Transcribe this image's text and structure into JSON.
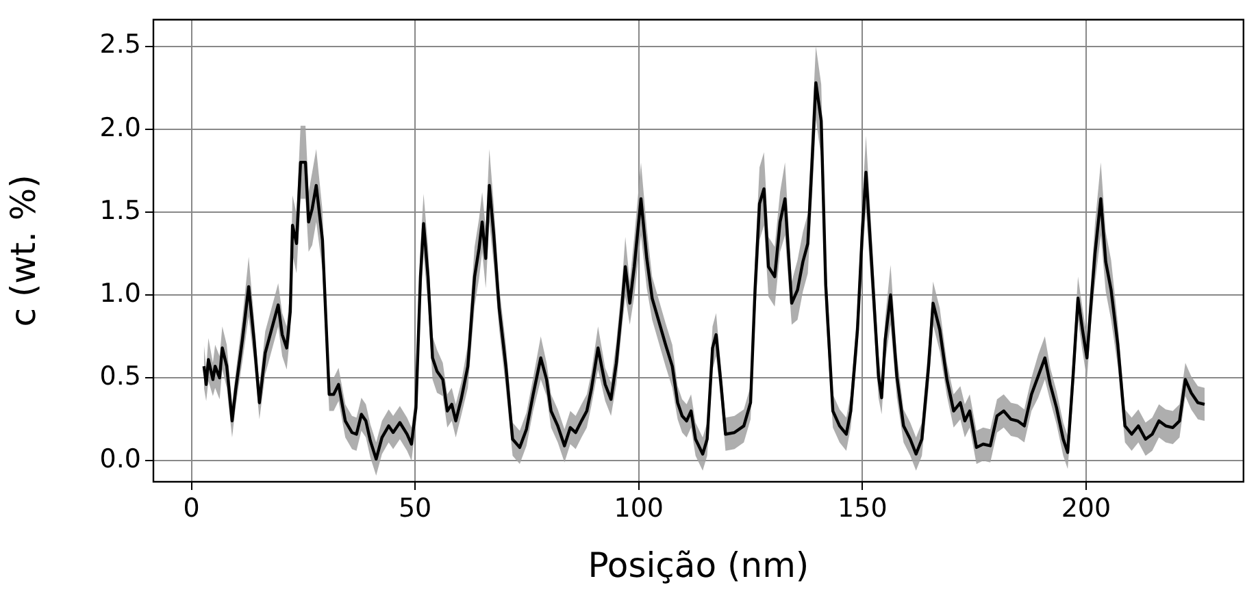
{
  "chart_data": {
    "type": "line",
    "xlabel": "Posição (nm)",
    "ylabel": "c (wt. %)",
    "xlim": [
      -8.5,
      235.2
    ],
    "ylim": [
      -0.127,
      2.66
    ],
    "xticks": [
      0,
      50,
      100,
      150,
      200
    ],
    "yticks": [
      {
        "value": 0,
        "label": "0.0"
      },
      {
        "value": 0.5,
        "label": "0.5"
      },
      {
        "value": 1,
        "label": "1.0"
      },
      {
        "value": 1.5,
        "label": "1.5"
      },
      {
        "value": 2,
        "label": "2.0"
      },
      {
        "value": 2.5,
        "label": "2.5"
      }
    ],
    "grid": true,
    "legend": false,
    "marker": "none",
    "line_style": "solid",
    "series": [
      {
        "color": "#000000",
        "x": [
          2.8,
          3.3,
          3.8,
          4.8,
          5.3,
          6.3,
          6.9,
          7.9,
          9.1,
          9.9,
          11.4,
          12.8,
          14,
          15.2,
          16.5,
          18.3,
          19.4,
          20.3,
          21.3,
          22.1,
          22.6,
          23.5,
          24.4,
          25.5,
          26.2,
          27,
          27.9,
          29.3,
          30.8,
          31.8,
          32.9,
          34.4,
          35.9,
          36.9,
          38,
          39,
          40,
          41.3,
          42.6,
          44.1,
          45.1,
          46.6,
          48.2,
          49.2,
          50.2,
          51.2,
          51.9,
          52.9,
          53.9,
          54.9,
          56.2,
          57.2,
          58.2,
          59.1,
          60.3,
          61.8,
          63.3,
          64.3,
          65,
          65.8,
          66.6,
          67.6,
          68.8,
          70.3,
          71.8,
          73.4,
          74.9,
          76.4,
          78.1,
          79.4,
          80.4,
          81.9,
          83.4,
          84.7,
          85.9,
          87.2,
          88.4,
          89.4,
          90.9,
          92.5,
          93.8,
          95,
          96.2,
          97,
          98,
          99,
          100.5,
          101.8,
          103,
          104.5,
          106,
          107.5,
          108.7,
          109.7,
          110.7,
          111.7,
          112.7,
          114.3,
          115.3,
          116.5,
          117.3,
          118.4,
          119.4,
          121.4,
          123.5,
          125,
          126,
          127,
          128,
          129,
          130.4,
          131.6,
          132.7,
          134.2,
          135.5,
          136.7,
          137.8,
          138.8,
          139.6,
          140.8,
          141.8,
          143.4,
          144.9,
          146.4,
          147.4,
          148.9,
          150,
          150.8,
          152,
          153.6,
          154.3,
          155.1,
          156.3,
          157.7,
          159.2,
          160.7,
          162,
          163.3,
          164.8,
          165.8,
          167.3,
          168.9,
          170.4,
          171.9,
          172.9,
          174,
          175.5,
          177,
          178.6,
          180.1,
          181.6,
          183.2,
          184.7,
          186.2,
          187.8,
          189.3,
          190.8,
          192,
          193.4,
          194.9,
          195.9,
          197.1,
          198.2,
          199.2,
          200.2,
          201.2,
          202,
          203.3,
          204.4,
          205.6,
          207.1,
          208.7,
          210.2,
          211.7,
          213.3,
          214.8,
          216.3,
          217.8,
          219.4,
          220.9,
          222.2,
          223.5,
          225,
          226.5
        ],
        "values": [
          0.57,
          0.46,
          0.61,
          0.49,
          0.57,
          0.5,
          0.68,
          0.57,
          0.24,
          0.43,
          0.73,
          1.05,
          0.73,
          0.35,
          0.65,
          0.83,
          0.94,
          0.76,
          0.68,
          0.9,
          1.42,
          1.31,
          1.8,
          1.8,
          1.44,
          1.52,
          1.66,
          1.33,
          0.4,
          0.4,
          0.46,
          0.24,
          0.17,
          0.16,
          0.28,
          0.24,
          0.12,
          0.01,
          0.14,
          0.21,
          0.17,
          0.23,
          0.16,
          0.1,
          0.32,
          1.11,
          1.43,
          1.11,
          0.62,
          0.54,
          0.49,
          0.3,
          0.34,
          0.24,
          0.37,
          0.57,
          1.11,
          1.28,
          1.44,
          1.22,
          1.66,
          1.36,
          0.92,
          0.57,
          0.13,
          0.08,
          0.19,
          0.4,
          0.62,
          0.49,
          0.3,
          0.21,
          0.09,
          0.2,
          0.17,
          0.24,
          0.3,
          0.43,
          0.68,
          0.46,
          0.37,
          0.59,
          0.92,
          1.17,
          0.95,
          1.17,
          1.58,
          1.22,
          0.98,
          0.84,
          0.7,
          0.57,
          0.35,
          0.27,
          0.24,
          0.3,
          0.13,
          0.04,
          0.13,
          0.68,
          0.76,
          0.46,
          0.16,
          0.17,
          0.21,
          0.35,
          1.03,
          1.55,
          1.64,
          1.17,
          1.11,
          1.44,
          1.58,
          0.95,
          1.03,
          1.2,
          1.31,
          1.83,
          2.28,
          2.05,
          1.06,
          0.3,
          0.21,
          0.16,
          0.3,
          0.79,
          1.39,
          1.74,
          1.22,
          0.51,
          0.38,
          0.73,
          1.0,
          0.51,
          0.21,
          0.13,
          0.04,
          0.13,
          0.57,
          0.95,
          0.79,
          0.49,
          0.3,
          0.35,
          0.24,
          0.3,
          0.08,
          0.1,
          0.09,
          0.27,
          0.3,
          0.25,
          0.24,
          0.21,
          0.4,
          0.51,
          0.62,
          0.46,
          0.32,
          0.13,
          0.05,
          0.51,
          0.98,
          0.79,
          0.62,
          0.98,
          1.25,
          1.58,
          1.2,
          1.03,
          0.7,
          0.21,
          0.16,
          0.21,
          0.13,
          0.16,
          0.24,
          0.21,
          0.2,
          0.24,
          0.49,
          0.41,
          0.35,
          0.34
        ],
        "lower": [
          0.44,
          0.36,
          0.48,
          0.39,
          0.44,
          0.37,
          0.55,
          0.44,
          0.14,
          0.33,
          0.6,
          0.87,
          0.6,
          0.25,
          0.52,
          0.7,
          0.81,
          0.63,
          0.55,
          0.77,
          1.24,
          1.13,
          1.58,
          1.58,
          1.26,
          1.3,
          1.44,
          1.15,
          0.3,
          0.3,
          0.36,
          0.14,
          0.07,
          0.06,
          0.18,
          0.14,
          0.02,
          -0.09,
          0.04,
          0.11,
          0.07,
          0.13,
          0.06,
          0,
          0.22,
          0.93,
          1.25,
          0.93,
          0.49,
          0.41,
          0.39,
          0.2,
          0.24,
          0.14,
          0.27,
          0.44,
          0.93,
          1.1,
          1.26,
          1.04,
          1.44,
          1.18,
          0.79,
          0.44,
          0.03,
          -0.02,
          0.09,
          0.3,
          0.49,
          0.39,
          0.2,
          0.11,
          -0.01,
          0.1,
          0.07,
          0.14,
          0.2,
          0.33,
          0.55,
          0.36,
          0.27,
          0.46,
          0.79,
          0.99,
          0.82,
          0.99,
          1.36,
          1.04,
          0.85,
          0.71,
          0.57,
          0.44,
          0.25,
          0.17,
          0.14,
          0.2,
          0.03,
          -0.06,
          0.03,
          0.55,
          0.63,
          0.36,
          0.06,
          0.07,
          0.11,
          0.25,
          0.85,
          1.33,
          1.42,
          0.99,
          0.93,
          1.26,
          1.36,
          0.82,
          0.85,
          1.02,
          1.13,
          1.61,
          2.06,
          1.83,
          0.88,
          0.2,
          0.11,
          0.06,
          0.2,
          0.66,
          1.21,
          1.52,
          1.04,
          0.38,
          0.28,
          0.6,
          0.82,
          0.38,
          0.11,
          0.03,
          -0.06,
          0.03,
          0.44,
          0.82,
          0.66,
          0.39,
          0.2,
          0.25,
          0.14,
          0.2,
          -0.02,
          0,
          -0.01,
          0.17,
          0.2,
          0.15,
          0.14,
          0.11,
          0.3,
          0.38,
          0.49,
          0.36,
          0.22,
          0.03,
          -0.05,
          0.38,
          0.85,
          0.66,
          0.49,
          0.85,
          1.07,
          1.36,
          1.02,
          0.85,
          0.57,
          0.11,
          0.06,
          0.11,
          0.03,
          0.06,
          0.14,
          0.11,
          0.1,
          0.14,
          0.39,
          0.31,
          0.25,
          0.24
        ],
        "upper": [
          0.7,
          0.56,
          0.74,
          0.59,
          0.7,
          0.63,
          0.81,
          0.7,
          0.34,
          0.53,
          0.86,
          1.23,
          0.86,
          0.45,
          0.78,
          0.96,
          1.07,
          0.89,
          0.81,
          1.03,
          1.6,
          1.49,
          2.02,
          2.02,
          1.62,
          1.74,
          1.88,
          1.51,
          0.5,
          0.5,
          0.56,
          0.34,
          0.27,
          0.26,
          0.38,
          0.34,
          0.22,
          0.11,
          0.24,
          0.31,
          0.27,
          0.33,
          0.26,
          0.2,
          0.42,
          1.29,
          1.61,
          1.29,
          0.75,
          0.67,
          0.59,
          0.4,
          0.44,
          0.34,
          0.47,
          0.7,
          1.29,
          1.46,
          1.62,
          1.4,
          1.88,
          1.54,
          1.05,
          0.7,
          0.23,
          0.18,
          0.29,
          0.5,
          0.75,
          0.59,
          0.4,
          0.31,
          0.19,
          0.3,
          0.27,
          0.34,
          0.4,
          0.53,
          0.81,
          0.56,
          0.47,
          0.72,
          1.05,
          1.35,
          1.08,
          1.35,
          1.8,
          1.4,
          1.11,
          0.97,
          0.83,
          0.7,
          0.45,
          0.37,
          0.34,
          0.4,
          0.23,
          0.14,
          0.23,
          0.81,
          0.89,
          0.56,
          0.26,
          0.27,
          0.31,
          0.45,
          1.21,
          1.77,
          1.86,
          1.35,
          1.29,
          1.62,
          1.8,
          1.08,
          1.21,
          1.38,
          1.49,
          2.05,
          2.5,
          2.27,
          1.24,
          0.4,
          0.31,
          0.26,
          0.4,
          0.92,
          1.57,
          1.96,
          1.4,
          0.64,
          0.48,
          0.86,
          1.18,
          0.64,
          0.31,
          0.23,
          0.14,
          0.23,
          0.7,
          1.08,
          0.92,
          0.59,
          0.4,
          0.45,
          0.34,
          0.4,
          0.18,
          0.2,
          0.19,
          0.37,
          0.4,
          0.35,
          0.34,
          0.31,
          0.5,
          0.64,
          0.75,
          0.56,
          0.42,
          0.23,
          0.15,
          0.64,
          1.11,
          0.92,
          0.75,
          1.11,
          1.43,
          1.8,
          1.38,
          1.21,
          0.83,
          0.31,
          0.26,
          0.31,
          0.23,
          0.26,
          0.34,
          0.31,
          0.3,
          0.34,
          0.59,
          0.51,
          0.45,
          0.44
        ]
      }
    ]
  }
}
